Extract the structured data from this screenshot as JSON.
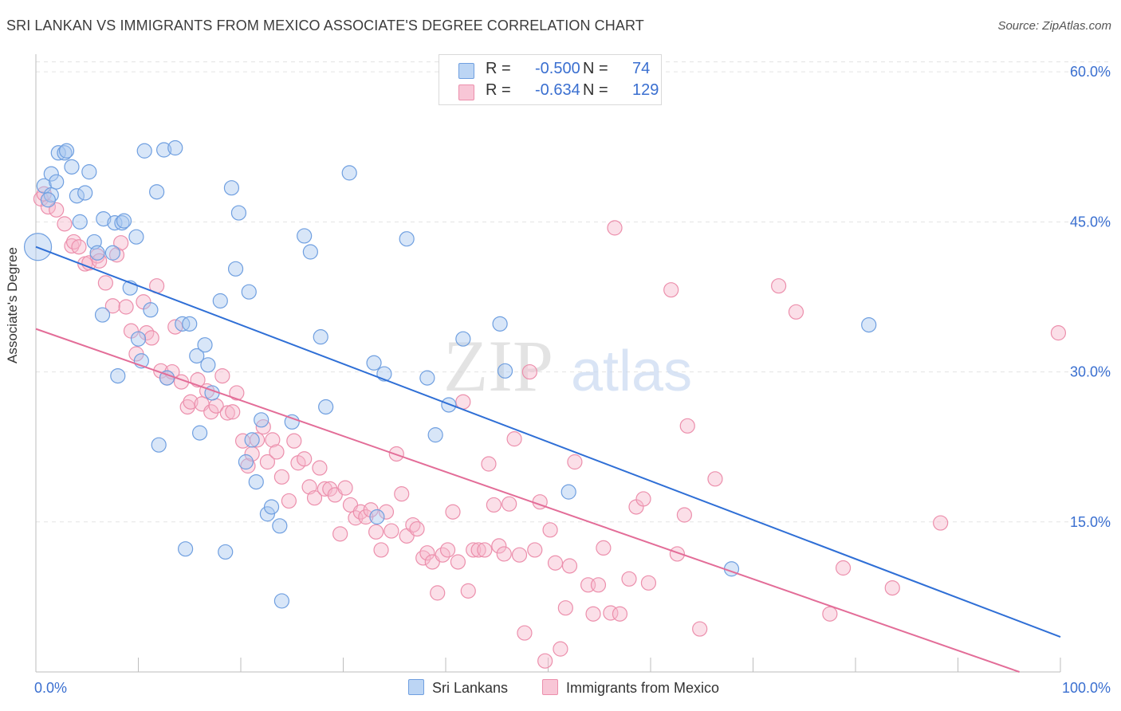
{
  "header": {
    "title": "SRI LANKAN VS IMMIGRANTS FROM MEXICO ASSOCIATE'S DEGREE CORRELATION CHART",
    "source": "Source: ZipAtlas.com"
  },
  "watermark": {
    "zip": "ZIP",
    "atlas": "atlas"
  },
  "legend": {
    "rows": [
      {
        "r_label": "R =",
        "r_value": "-0.500",
        "n_label": "N =",
        "n_value": "74"
      },
      {
        "r_label": "R =",
        "r_value": "-0.634",
        "n_label": "N =",
        "n_value": "129"
      }
    ]
  },
  "bottom_legend": [
    "Sri Lankans",
    "Immigrants from Mexico"
  ],
  "colors": {
    "blue_fill": "#a9c8f0",
    "blue_stroke": "#6f9fe0",
    "blue_line": "#2f6fd6",
    "pink_fill": "#f6b9cc",
    "pink_stroke": "#ec8fac",
    "pink_line": "#e36d98",
    "axis_text": "#3a6fd0"
  },
  "chart_data": {
    "type": "scatter",
    "title": "SRI LANKAN VS IMMIGRANTS FROM MEXICO ASSOCIATE'S DEGREE CORRELATION CHART",
    "xlabel": "",
    "ylabel": "Associate's Degree",
    "xlim": [
      0,
      100
    ],
    "ylim": [
      0,
      61
    ],
    "x_tick_labels": [
      "0.0%",
      "100.0%"
    ],
    "y_ticks": [
      15,
      30,
      45,
      60
    ],
    "y_tick_labels": [
      "15.0%",
      "30.0%",
      "45.0%",
      "60.0%"
    ],
    "grid": "horizontal dashed",
    "legend_position": "top-center",
    "series": [
      {
        "name": "Sri Lankans",
        "color": "#6f9fe0",
        "trend": {
          "x": [
            0,
            100
          ],
          "y": [
            42.5,
            3.5
          ]
        },
        "points": [
          {
            "x": 0.2,
            "y": 42.5,
            "big": true
          },
          {
            "x": 0.8,
            "y": 48.6
          },
          {
            "x": 1.5,
            "y": 47.7
          },
          {
            "x": 1.2,
            "y": 47.2
          },
          {
            "x": 1.5,
            "y": 49.8
          },
          {
            "x": 2.0,
            "y": 49.0
          },
          {
            "x": 2.2,
            "y": 51.9
          },
          {
            "x": 2.8,
            "y": 51.9
          },
          {
            "x": 3.0,
            "y": 52.1
          },
          {
            "x": 3.5,
            "y": 50.5
          },
          {
            "x": 4.0,
            "y": 47.6
          },
          {
            "x": 4.3,
            "y": 45.0
          },
          {
            "x": 4.8,
            "y": 47.9
          },
          {
            "x": 5.2,
            "y": 50.0
          },
          {
            "x": 5.7,
            "y": 43.0
          },
          {
            "x": 6.0,
            "y": 41.9
          },
          {
            "x": 6.5,
            "y": 35.7
          },
          {
            "x": 6.6,
            "y": 45.3
          },
          {
            "x": 7.5,
            "y": 41.9
          },
          {
            "x": 7.7,
            "y": 44.9
          },
          {
            "x": 8.4,
            "y": 44.9
          },
          {
            "x": 8.6,
            "y": 45.1
          },
          {
            "x": 9.2,
            "y": 38.4
          },
          {
            "x": 9.8,
            "y": 43.5
          },
          {
            "x": 8.0,
            "y": 29.6
          },
          {
            "x": 10.0,
            "y": 33.3
          },
          {
            "x": 10.3,
            "y": 31.1
          },
          {
            "x": 10.6,
            "y": 52.1
          },
          {
            "x": 11.2,
            "y": 36.2
          },
          {
            "x": 11.8,
            "y": 48.0
          },
          {
            "x": 12.0,
            "y": 22.7
          },
          {
            "x": 12.5,
            "y": 52.2
          },
          {
            "x": 12.8,
            "y": 29.4
          },
          {
            "x": 13.6,
            "y": 52.4
          },
          {
            "x": 14.3,
            "y": 34.8
          },
          {
            "x": 14.6,
            "y": 12.3
          },
          {
            "x": 15.0,
            "y": 34.8
          },
          {
            "x": 15.7,
            "y": 31.6
          },
          {
            "x": 16.0,
            "y": 23.9
          },
          {
            "x": 16.8,
            "y": 30.7
          },
          {
            "x": 16.5,
            "y": 32.7
          },
          {
            "x": 17.2,
            "y": 27.9
          },
          {
            "x": 18.0,
            "y": 37.1
          },
          {
            "x": 18.5,
            "y": 12.0
          },
          {
            "x": 19.1,
            "y": 48.4
          },
          {
            "x": 19.5,
            "y": 40.3
          },
          {
            "x": 19.8,
            "y": 45.9
          },
          {
            "x": 20.8,
            "y": 38.0
          },
          {
            "x": 20.5,
            "y": 21.0
          },
          {
            "x": 21.1,
            "y": 23.2
          },
          {
            "x": 21.5,
            "y": 19.0
          },
          {
            "x": 22.0,
            "y": 25.2
          },
          {
            "x": 22.6,
            "y": 15.8
          },
          {
            "x": 23.0,
            "y": 16.5
          },
          {
            "x": 23.8,
            "y": 14.6
          },
          {
            "x": 24.0,
            "y": 7.1
          },
          {
            "x": 25.0,
            "y": 25.0
          },
          {
            "x": 26.2,
            "y": 43.6
          },
          {
            "x": 26.8,
            "y": 42.0
          },
          {
            "x": 27.8,
            "y": 33.5
          },
          {
            "x": 28.3,
            "y": 26.5
          },
          {
            "x": 30.6,
            "y": 49.9
          },
          {
            "x": 33.0,
            "y": 30.9
          },
          {
            "x": 33.3,
            "y": 15.5
          },
          {
            "x": 34.0,
            "y": 29.8
          },
          {
            "x": 36.2,
            "y": 43.3
          },
          {
            "x": 38.2,
            "y": 29.4
          },
          {
            "x": 39.0,
            "y": 23.7
          },
          {
            "x": 40.3,
            "y": 26.7
          },
          {
            "x": 41.7,
            "y": 33.3
          },
          {
            "x": 45.3,
            "y": 34.8
          },
          {
            "x": 45.8,
            "y": 30.1
          },
          {
            "x": 52.0,
            "y": 18.0
          },
          {
            "x": 67.9,
            "y": 10.3
          },
          {
            "x": 81.3,
            "y": 34.7
          }
        ]
      },
      {
        "name": "Immigrants from Mexico",
        "color": "#ec8fac",
        "trend": {
          "x": [
            0,
            96
          ],
          "y": [
            34.3,
            0.0
          ]
        },
        "points": [
          {
            "x": 0.5,
            "y": 47.3
          },
          {
            "x": 0.8,
            "y": 47.8
          },
          {
            "x": 1.2,
            "y": 46.5
          },
          {
            "x": 2.0,
            "y": 46.2
          },
          {
            "x": 2.8,
            "y": 44.8
          },
          {
            "x": 3.5,
            "y": 42.6
          },
          {
            "x": 3.7,
            "y": 43.0
          },
          {
            "x": 4.2,
            "y": 42.5
          },
          {
            "x": 4.8,
            "y": 40.8
          },
          {
            "x": 5.2,
            "y": 40.9
          },
          {
            "x": 6.0,
            "y": 41.6
          },
          {
            "x": 6.2,
            "y": 41.1
          },
          {
            "x": 6.8,
            "y": 38.9
          },
          {
            "x": 7.5,
            "y": 36.6
          },
          {
            "x": 7.9,
            "y": 41.7
          },
          {
            "x": 8.3,
            "y": 42.9
          },
          {
            "x": 8.8,
            "y": 36.5
          },
          {
            "x": 9.3,
            "y": 34.1
          },
          {
            "x": 9.8,
            "y": 31.8
          },
          {
            "x": 10.5,
            "y": 37.0
          },
          {
            "x": 10.8,
            "y": 33.9
          },
          {
            "x": 11.3,
            "y": 33.4
          },
          {
            "x": 11.8,
            "y": 38.6
          },
          {
            "x": 12.2,
            "y": 30.1
          },
          {
            "x": 12.8,
            "y": 29.4
          },
          {
            "x": 13.3,
            "y": 30.0
          },
          {
            "x": 13.6,
            "y": 34.5
          },
          {
            "x": 14.2,
            "y": 29.0
          },
          {
            "x": 14.8,
            "y": 26.5
          },
          {
            "x": 15.1,
            "y": 27.0
          },
          {
            "x": 15.8,
            "y": 29.2
          },
          {
            "x": 16.2,
            "y": 26.8
          },
          {
            "x": 16.7,
            "y": 28.1
          },
          {
            "x": 17.1,
            "y": 26.0
          },
          {
            "x": 17.6,
            "y": 26.6
          },
          {
            "x": 18.2,
            "y": 29.6
          },
          {
            "x": 18.7,
            "y": 25.9
          },
          {
            "x": 19.2,
            "y": 26.0
          },
          {
            "x": 19.6,
            "y": 27.9
          },
          {
            "x": 20.2,
            "y": 23.1
          },
          {
            "x": 20.7,
            "y": 20.6
          },
          {
            "x": 21.1,
            "y": 21.8
          },
          {
            "x": 21.6,
            "y": 23.2
          },
          {
            "x": 22.2,
            "y": 24.5
          },
          {
            "x": 22.6,
            "y": 21.0
          },
          {
            "x": 23.1,
            "y": 23.2
          },
          {
            "x": 23.5,
            "y": 22.0
          },
          {
            "x": 24.0,
            "y": 19.5
          },
          {
            "x": 24.7,
            "y": 17.1
          },
          {
            "x": 25.2,
            "y": 23.1
          },
          {
            "x": 25.6,
            "y": 20.9
          },
          {
            "x": 26.2,
            "y": 21.3
          },
          {
            "x": 26.7,
            "y": 18.5
          },
          {
            "x": 27.2,
            "y": 17.4
          },
          {
            "x": 27.7,
            "y": 20.4
          },
          {
            "x": 28.2,
            "y": 18.3
          },
          {
            "x": 28.7,
            "y": 18.3
          },
          {
            "x": 29.2,
            "y": 17.7
          },
          {
            "x": 29.7,
            "y": 13.8
          },
          {
            "x": 30.2,
            "y": 18.4
          },
          {
            "x": 30.7,
            "y": 16.7
          },
          {
            "x": 31.2,
            "y": 15.4
          },
          {
            "x": 31.7,
            "y": 16.0
          },
          {
            "x": 32.2,
            "y": 15.5
          },
          {
            "x": 32.7,
            "y": 16.2
          },
          {
            "x": 33.2,
            "y": 14.0
          },
          {
            "x": 33.7,
            "y": 12.2
          },
          {
            "x": 34.2,
            "y": 16.0
          },
          {
            "x": 34.7,
            "y": 14.1
          },
          {
            "x": 35.2,
            "y": 21.8
          },
          {
            "x": 35.7,
            "y": 17.8
          },
          {
            "x": 36.2,
            "y": 13.6
          },
          {
            "x": 36.8,
            "y": 14.7
          },
          {
            "x": 37.2,
            "y": 14.3
          },
          {
            "x": 37.8,
            "y": 11.4
          },
          {
            "x": 38.2,
            "y": 11.9
          },
          {
            "x": 38.7,
            "y": 11.0
          },
          {
            "x": 39.2,
            "y": 7.9
          },
          {
            "x": 39.7,
            "y": 11.7
          },
          {
            "x": 40.2,
            "y": 12.2
          },
          {
            "x": 40.7,
            "y": 16.0
          },
          {
            "x": 41.2,
            "y": 11.0
          },
          {
            "x": 41.7,
            "y": 27.0
          },
          {
            "x": 42.2,
            "y": 8.1
          },
          {
            "x": 42.7,
            "y": 12.2
          },
          {
            "x": 43.2,
            "y": 12.2
          },
          {
            "x": 43.8,
            "y": 12.2
          },
          {
            "x": 44.2,
            "y": 20.8
          },
          {
            "x": 44.7,
            "y": 16.7
          },
          {
            "x": 45.2,
            "y": 12.6
          },
          {
            "x": 45.7,
            "y": 11.8
          },
          {
            "x": 46.2,
            "y": 16.8
          },
          {
            "x": 46.7,
            "y": 23.3
          },
          {
            "x": 47.2,
            "y": 11.7
          },
          {
            "x": 47.7,
            "y": 3.9
          },
          {
            "x": 48.2,
            "y": 30.0
          },
          {
            "x": 48.7,
            "y": 12.2
          },
          {
            "x": 49.2,
            "y": 17.0
          },
          {
            "x": 49.7,
            "y": 1.1
          },
          {
            "x": 50.2,
            "y": 14.2
          },
          {
            "x": 50.7,
            "y": 10.9
          },
          {
            "x": 51.2,
            "y": 2.3
          },
          {
            "x": 51.7,
            "y": 6.4
          },
          {
            "x": 52.1,
            "y": 10.6
          },
          {
            "x": 52.6,
            "y": 21.0
          },
          {
            "x": 53.9,
            "y": 8.7
          },
          {
            "x": 54.4,
            "y": 5.8
          },
          {
            "x": 54.9,
            "y": 8.7
          },
          {
            "x": 55.4,
            "y": 12.4
          },
          {
            "x": 56.1,
            "y": 5.9
          },
          {
            "x": 56.5,
            "y": 44.4
          },
          {
            "x": 57.0,
            "y": 5.8
          },
          {
            "x": 57.9,
            "y": 9.3
          },
          {
            "x": 58.6,
            "y": 16.5
          },
          {
            "x": 59.3,
            "y": 17.3
          },
          {
            "x": 59.8,
            "y": 8.9
          },
          {
            "x": 62.0,
            "y": 38.2
          },
          {
            "x": 62.6,
            "y": 11.8
          },
          {
            "x": 63.3,
            "y": 15.7
          },
          {
            "x": 63.6,
            "y": 24.6
          },
          {
            "x": 64.8,
            "y": 4.3
          },
          {
            "x": 66.3,
            "y": 19.3
          },
          {
            "x": 72.5,
            "y": 38.6
          },
          {
            "x": 74.2,
            "y": 36.0
          },
          {
            "x": 77.5,
            "y": 5.8
          },
          {
            "x": 78.8,
            "y": 10.4
          },
          {
            "x": 83.6,
            "y": 8.4
          },
          {
            "x": 88.3,
            "y": 14.9
          },
          {
            "x": 99.8,
            "y": 33.9
          }
        ]
      }
    ]
  }
}
